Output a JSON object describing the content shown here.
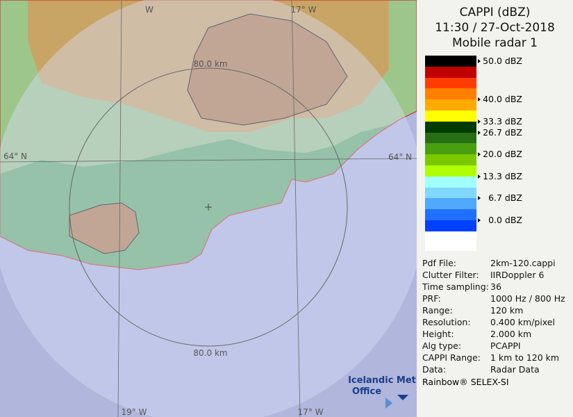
{
  "title": [
    "CAPPI (dBZ)",
    "11:30 / 27-Oct-2018",
    "Mobile radar 1"
  ],
  "colorbar": {
    "colors": [
      "#000000",
      "#c00000",
      "#ff3c00",
      "#ff7f00",
      "#ffaa00",
      "#ffff00",
      "#003c00",
      "#286e14",
      "#48a010",
      "#7cc800",
      "#b0ff00",
      "#a0ffff",
      "#80d8ff",
      "#50a8ff",
      "#2070ff",
      "#0040ff",
      "#ffffff"
    ],
    "labels": [
      "50.0 dBZ",
      "40.0 dBZ",
      "33.3 dBZ",
      "26.7 dBZ",
      "20.0 dBZ",
      "13.3 dBZ",
      "6.7 dBZ",
      "0.0 dBZ"
    ]
  },
  "info": [
    [
      "Pdf File:",
      "2km-120.cappi"
    ],
    [
      "Clutter Filter:",
      "IIRDoppler 6"
    ],
    [
      "Time sampling:",
      "36"
    ],
    [
      "PRF:",
      "1000 Hz / 800 Hz"
    ],
    [
      "Range:",
      "120 km"
    ],
    [
      "Resolution:",
      "0.400 km/pixel"
    ],
    [
      "Height:",
      "2.000 km"
    ],
    [
      "Alg type:",
      "PCAPPI"
    ],
    [
      "CAPPI Range:",
      "1 km to 120 km"
    ],
    [
      "Data:",
      "Radar Data"
    ]
  ],
  "footer": "Rainbow® SELEX-SI",
  "map": {
    "ring_labels": [
      "80.0 km",
      "80.0 km"
    ],
    "grid_labels": [
      "W",
      "17° W",
      "64° N",
      "64° N",
      "19° W",
      "17° W"
    ],
    "logo": [
      "Icelandic Met",
      "Office"
    ]
  }
}
